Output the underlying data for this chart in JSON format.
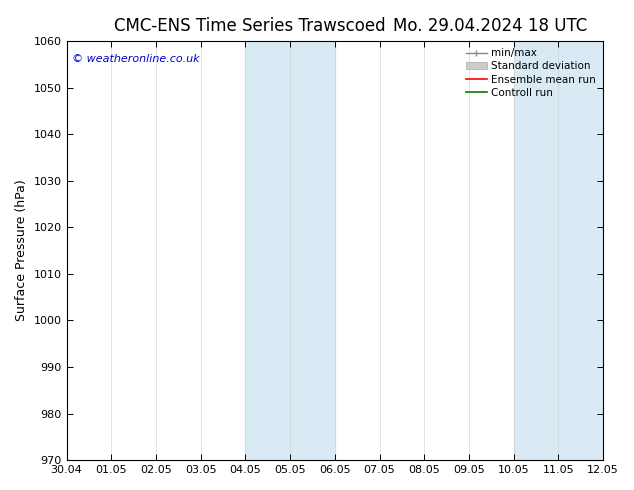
{
  "title_left": "CMC-ENS Time Series Trawscoed",
  "title_right": "Mo. 29.04.2024 18 UTC",
  "ylabel": "Surface Pressure (hPa)",
  "ylim": [
    970,
    1060
  ],
  "yticks": [
    970,
    980,
    990,
    1000,
    1010,
    1020,
    1030,
    1040,
    1050,
    1060
  ],
  "xlim_start": 0,
  "xlim_end": 12,
  "xtick_positions": [
    0,
    1,
    2,
    3,
    4,
    5,
    6,
    7,
    8,
    9,
    10,
    11,
    12
  ],
  "xtick_labels": [
    "30.04",
    "01.05",
    "02.05",
    "03.05",
    "04.05",
    "05.05",
    "06.05",
    "07.05",
    "08.05",
    "09.05",
    "10.05",
    "11.05",
    "12.05"
  ],
  "shaded_bands": [
    {
      "x_start": 4,
      "x_end": 6,
      "color": "#daeaf5"
    },
    {
      "x_start": 10,
      "x_end": 12,
      "color": "#daeaf5"
    }
  ],
  "watermark": "© weatheronline.co.uk",
  "legend_items": [
    {
      "label": "min/max",
      "color": "#888888",
      "lw": 1.0
    },
    {
      "label": "Standard deviation",
      "color": "#cccccc",
      "lw": 6
    },
    {
      "label": "Ensemble mean run",
      "color": "red",
      "lw": 1.2
    },
    {
      "label": "Controll run",
      "color": "green",
      "lw": 1.2
    }
  ],
  "bg_color": "#ffffff",
  "title_fontsize": 12,
  "axis_fontsize": 9,
  "tick_fontsize": 8,
  "watermark_color": "#0000cc"
}
